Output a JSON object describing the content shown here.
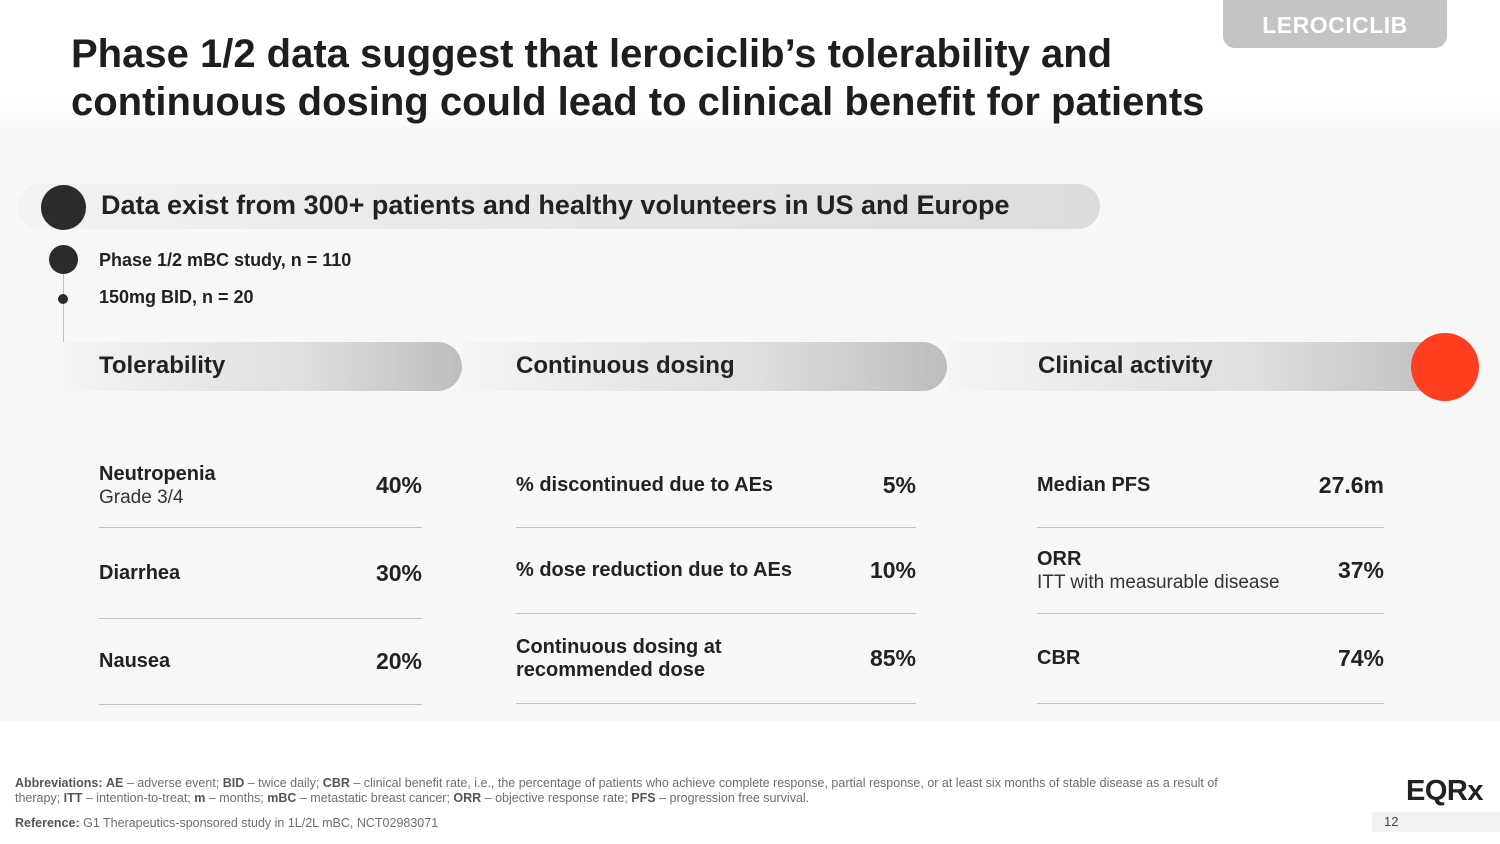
{
  "header": {
    "product_tag": "LEROCICLIB",
    "title": "Phase 1/2 data suggest that lerociclib’s tolerability and continuous dosing could lead to clinical benefit for patients"
  },
  "banner": {
    "text": "Data exist from 300+ patients and healthy volunteers in US and Europe"
  },
  "timeline": {
    "study": "Phase 1/2 mBC study, n = 110",
    "dose": "150mg BID, n = 20"
  },
  "accent_color": "#ff3d1f",
  "columns": [
    {
      "title": "Tolerability",
      "rows": [
        {
          "label": "Neutropenia",
          "sub": "Grade 3/4",
          "value": "40%"
        },
        {
          "label": "Diarrhea",
          "sub": "",
          "value": "30%"
        },
        {
          "label": "Nausea",
          "sub": "",
          "value": "20%"
        }
      ]
    },
    {
      "title": "Continuous dosing",
      "rows": [
        {
          "label": "% discontinued due to AEs",
          "sub": "",
          "value": "5%"
        },
        {
          "label": "% dose reduction due to AEs",
          "sub": "",
          "value": "10%"
        },
        {
          "label": "Continuous dosing at recommended dose",
          "sub": "",
          "value": "85%"
        }
      ]
    },
    {
      "title": "Clinical activity",
      "rows": [
        {
          "label": "Median PFS",
          "sub": "",
          "value": "27.6m"
        },
        {
          "label": "ORR",
          "sub": "ITT with measurable disease",
          "value": "37%"
        },
        {
          "label": "CBR",
          "sub": "",
          "value": "74%"
        }
      ]
    }
  ],
  "footer": {
    "abbrev_label": "Abbreviations:",
    "abbrev_items": [
      {
        "term": "AE",
        "def": " – adverse event; "
      },
      {
        "term": "BID",
        "def": " – twice daily; "
      },
      {
        "term": "CBR",
        "def": " – clinical benefit rate, i.e., the percentage of patients who achieve complete response, partial response, or at least six months of stable disease as a result of therapy; "
      },
      {
        "term": "ITT",
        "def": " – intention-to-treat; "
      },
      {
        "term": "m",
        "def": " – months;  "
      },
      {
        "term": "mBC",
        "def": " – metastatic breast cancer; "
      },
      {
        "term": "ORR",
        "def": " – objective response rate; "
      },
      {
        "term": "PFS",
        "def": " – progression free survival."
      }
    ],
    "reference_label": "Reference:",
    "reference_text": " G1 Therapeutics-sponsored study in 1L/2L mBC, NCT02983071",
    "logo": "EQRx",
    "page_number": "12"
  }
}
